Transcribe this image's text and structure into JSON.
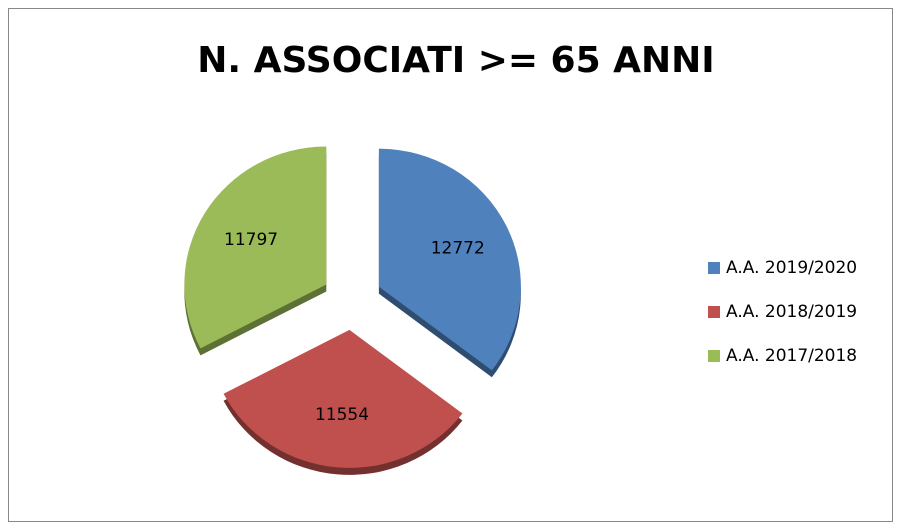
{
  "chart_data": {
    "type": "pie",
    "title": "N. ASSOCIATI >= 65 ANNI",
    "categories": [
      "A.A. 2019/2020",
      "A.A. 2018/2019",
      "A.A. 2017/2018"
    ],
    "values": [
      12772,
      11554,
      11797
    ],
    "colors": [
      "#4f81bd",
      "#c0504d",
      "#9bbb59"
    ],
    "legend": "right"
  }
}
